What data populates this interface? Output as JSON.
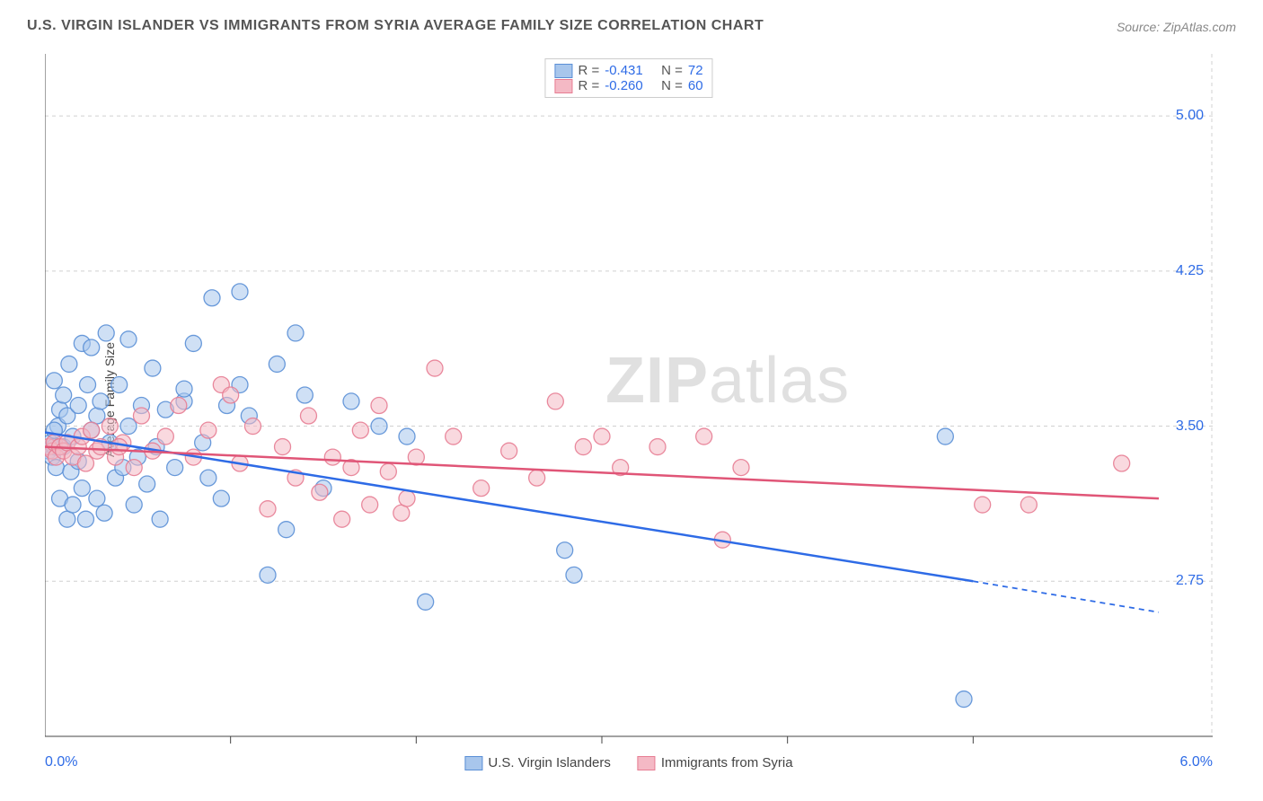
{
  "title": "U.S. VIRGIN ISLANDER VS IMMIGRANTS FROM SYRIA AVERAGE FAMILY SIZE CORRELATION CHART",
  "source": "Source: ZipAtlas.com",
  "ylabel": "Average Family Size",
  "watermark_bold": "ZIP",
  "watermark_light": "atlas",
  "chart": {
    "type": "scatter",
    "xlim": [
      0.0,
      6.0
    ],
    "ylim": [
      2.0,
      5.3
    ],
    "yticks": [
      2.75,
      3.5,
      4.25,
      5.0
    ],
    "xtick_labels": {
      "min": "0.0%",
      "max": "6.0%"
    },
    "xtick_minor_positions": [
      1.0,
      2.0,
      3.0,
      4.0,
      5.0
    ],
    "background_color": "#ffffff",
    "grid_color": "#d0d0d0",
    "grid_dash": "4,4",
    "axis_color": "#444444",
    "tick_label_color": "#2e6be6",
    "tick_fontsize": 16,
    "marker_radius": 9,
    "marker_opacity": 0.55,
    "marker_stroke_width": 1.3,
    "trend_line_width": 2.5,
    "series": [
      {
        "name": "U.S. Virgin Islanders",
        "fill_color": "#a8c6ec",
        "stroke_color": "#5a8fd6",
        "line_color": "#2e6be6",
        "R": "-0.431",
        "N": "72",
        "trend": {
          "x1": 0.0,
          "y1": 3.47,
          "x2": 5.0,
          "y2": 2.75,
          "extrap_x2": 6.0,
          "extrap_y2": 2.6
        },
        "points": [
          [
            0.02,
            3.38
          ],
          [
            0.03,
            3.42
          ],
          [
            0.04,
            3.35
          ],
          [
            0.05,
            3.4
          ],
          [
            0.05,
            3.72
          ],
          [
            0.06,
            3.3
          ],
          [
            0.07,
            3.5
          ],
          [
            0.08,
            3.58
          ],
          [
            0.08,
            3.15
          ],
          [
            0.1,
            3.65
          ],
          [
            0.1,
            3.4
          ],
          [
            0.12,
            3.05
          ],
          [
            0.12,
            3.55
          ],
          [
            0.13,
            3.8
          ],
          [
            0.14,
            3.28
          ],
          [
            0.15,
            3.45
          ],
          [
            0.15,
            3.12
          ],
          [
            0.18,
            3.6
          ],
          [
            0.18,
            3.33
          ],
          [
            0.2,
            3.9
          ],
          [
            0.2,
            3.2
          ],
          [
            0.22,
            3.05
          ],
          [
            0.23,
            3.7
          ],
          [
            0.25,
            3.48
          ],
          [
            0.25,
            3.88
          ],
          [
            0.28,
            3.55
          ],
          [
            0.28,
            3.15
          ],
          [
            0.3,
            3.62
          ],
          [
            0.32,
            3.08
          ],
          [
            0.33,
            3.95
          ],
          [
            0.35,
            3.42
          ],
          [
            0.38,
            3.25
          ],
          [
            0.4,
            3.7
          ],
          [
            0.42,
            3.3
          ],
          [
            0.45,
            3.92
          ],
          [
            0.45,
            3.5
          ],
          [
            0.48,
            3.12
          ],
          [
            0.5,
            3.35
          ],
          [
            0.52,
            3.6
          ],
          [
            0.55,
            3.22
          ],
          [
            0.58,
            3.78
          ],
          [
            0.6,
            3.4
          ],
          [
            0.62,
            3.05
          ],
          [
            0.65,
            3.58
          ],
          [
            0.7,
            3.3
          ],
          [
            0.75,
            3.62
          ],
          [
            0.75,
            3.68
          ],
          [
            0.8,
            3.9
          ],
          [
            0.85,
            3.42
          ],
          [
            0.88,
            3.25
          ],
          [
            0.9,
            4.12
          ],
          [
            0.95,
            3.15
          ],
          [
            0.98,
            3.6
          ],
          [
            1.05,
            4.15
          ],
          [
            1.05,
            3.7
          ],
          [
            1.1,
            3.55
          ],
          [
            1.2,
            2.78
          ],
          [
            1.25,
            3.8
          ],
          [
            1.3,
            3.0
          ],
          [
            1.35,
            3.95
          ],
          [
            1.4,
            3.65
          ],
          [
            1.5,
            3.2
          ],
          [
            1.65,
            3.62
          ],
          [
            1.8,
            3.5
          ],
          [
            1.95,
            3.45
          ],
          [
            2.05,
            2.65
          ],
          [
            2.8,
            2.9
          ],
          [
            2.85,
            2.78
          ],
          [
            4.85,
            3.45
          ],
          [
            4.95,
            2.18
          ],
          [
            0.05,
            3.48
          ],
          [
            0.08,
            3.4
          ]
        ]
      },
      {
        "name": "Immigrants from Syria",
        "fill_color": "#f4b9c5",
        "stroke_color": "#e77d93",
        "line_color": "#e05577",
        "R": "-0.260",
        "N": "60",
        "trend": {
          "x1": 0.0,
          "y1": 3.4,
          "x2": 6.0,
          "y2": 3.15
        },
        "points": [
          [
            0.02,
            3.4
          ],
          [
            0.04,
            3.38
          ],
          [
            0.05,
            3.42
          ],
          [
            0.06,
            3.35
          ],
          [
            0.08,
            3.4
          ],
          [
            0.1,
            3.38
          ],
          [
            0.12,
            3.42
          ],
          [
            0.15,
            3.35
          ],
          [
            0.18,
            3.4
          ],
          [
            0.2,
            3.45
          ],
          [
            0.22,
            3.32
          ],
          [
            0.25,
            3.48
          ],
          [
            0.28,
            3.38
          ],
          [
            0.3,
            3.4
          ],
          [
            0.35,
            3.5
          ],
          [
            0.38,
            3.35
          ],
          [
            0.42,
            3.42
          ],
          [
            0.48,
            3.3
          ],
          [
            0.52,
            3.55
          ],
          [
            0.58,
            3.38
          ],
          [
            0.65,
            3.45
          ],
          [
            0.72,
            3.6
          ],
          [
            0.8,
            3.35
          ],
          [
            0.88,
            3.48
          ],
          [
            0.95,
            3.7
          ],
          [
            1.05,
            3.32
          ],
          [
            1.12,
            3.5
          ],
          [
            1.2,
            3.1
          ],
          [
            1.28,
            3.4
          ],
          [
            1.35,
            3.25
          ],
          [
            1.42,
            3.55
          ],
          [
            1.48,
            3.18
          ],
          [
            1.55,
            3.35
          ],
          [
            1.6,
            3.05
          ],
          [
            1.65,
            3.3
          ],
          [
            1.7,
            3.48
          ],
          [
            1.75,
            3.12
          ],
          [
            1.8,
            3.6
          ],
          [
            1.85,
            3.28
          ],
          [
            1.92,
            3.08
          ],
          [
            1.95,
            3.15
          ],
          [
            2.0,
            3.35
          ],
          [
            2.1,
            3.78
          ],
          [
            2.2,
            3.45
          ],
          [
            2.35,
            3.2
          ],
          [
            2.5,
            3.38
          ],
          [
            2.65,
            3.25
          ],
          [
            2.75,
            3.62
          ],
          [
            2.9,
            3.4
          ],
          [
            3.0,
            3.45
          ],
          [
            3.1,
            3.3
          ],
          [
            3.3,
            3.4
          ],
          [
            3.55,
            3.45
          ],
          [
            3.65,
            2.95
          ],
          [
            3.75,
            3.3
          ],
          [
            5.05,
            3.12
          ],
          [
            5.3,
            3.12
          ],
          [
            5.8,
            3.32
          ],
          [
            1.0,
            3.65
          ],
          [
            0.4,
            3.4
          ]
        ]
      }
    ]
  },
  "legend_bottom": [
    {
      "label": "U.S. Virgin Islanders",
      "fill": "#a8c6ec",
      "stroke": "#5a8fd6"
    },
    {
      "label": "Immigrants from Syria",
      "fill": "#f4b9c5",
      "stroke": "#e77d93"
    }
  ]
}
